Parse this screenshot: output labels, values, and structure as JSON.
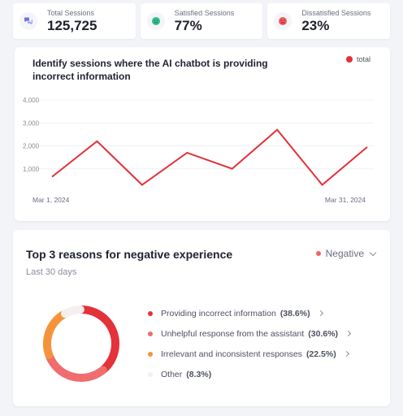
{
  "kpis": [
    {
      "label": "Total Sessions",
      "value": "125,725",
      "icon": "chat-bubbles-icon",
      "color": "#6b74e6"
    },
    {
      "label": "Satisfied Sessions",
      "value": "77%",
      "icon": "happy-face-icon",
      "color": "#2fbf8f"
    },
    {
      "label": "Dissatisfied Sessions",
      "value": "23%",
      "icon": "sad-face-icon",
      "color": "#ef5a5e"
    }
  ],
  "line_card": {
    "title": "Identify sessions where the AI chatbot is providing incorrect information",
    "legend": "total"
  },
  "donut_card": {
    "title": "Top 3 reasons for negative experience",
    "subtitle": "Last 30 days",
    "filter_label": "Negative",
    "reasons": [
      {
        "label": "Providing incorrect information",
        "pct": "(38.6%)",
        "color": "#e4313a",
        "has_chevron": true
      },
      {
        "label": "Unhelpful response from the assistant",
        "pct": "(30.6%)",
        "color": "#ef6c6f",
        "has_chevron": true
      },
      {
        "label": "Irrelevant and inconsistent responses",
        "pct": "(22.5%)",
        "color": "#f4943a",
        "has_chevron": true
      },
      {
        "label": "Other",
        "pct": "(8.3%)",
        "color": "#f6efef",
        "has_chevron": false
      }
    ]
  },
  "chart_data": [
    {
      "type": "line",
      "x_start_label": "Mar 1, 2024",
      "x_end_label": "Mar 31, 2024",
      "ylim": [
        0,
        4000
      ],
      "yticks": [
        "1,000",
        "2,000",
        "3,000",
        "4,000"
      ],
      "ytick_values": [
        1000,
        2000,
        3000,
        4000
      ],
      "grid": true,
      "color": "#e4313a",
      "series": [
        {
          "name": "total",
          "values": [
            650,
            2200,
            300,
            1700,
            1000,
            2700,
            300,
            1950
          ]
        }
      ]
    },
    {
      "type": "pie",
      "variant": "donut",
      "labels": [
        "Providing incorrect information",
        "Unhelpful response from the assistant",
        "Irrelevant and inconsistent responses",
        "Other"
      ],
      "values": [
        38.6,
        30.6,
        22.5,
        8.3
      ],
      "colors": [
        "#e4313a",
        "#ef6c6f",
        "#f4943a",
        "#f6efef"
      ]
    }
  ]
}
